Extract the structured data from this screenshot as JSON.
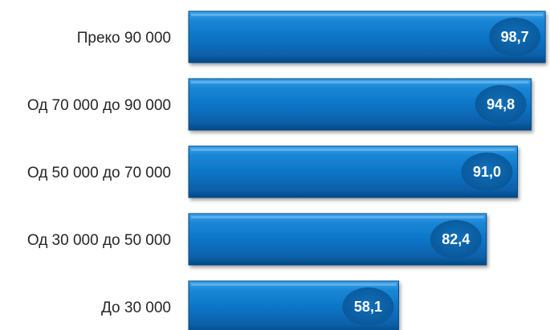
{
  "chart_data": {
    "type": "bar",
    "orientation": "horizontal",
    "categories": [
      "Преко 90 000",
      "Од 70 000 до 90 000",
      "Од 50 000 до 70 000",
      "Од 30 000 до 50 000",
      "До 30 000"
    ],
    "values": [
      98.7,
      94.8,
      91.0,
      82.4,
      58.1
    ],
    "value_labels": [
      "98,7",
      "94,8",
      "91,0",
      "82,4",
      "58,1"
    ],
    "title": "",
    "xlabel": "",
    "ylabel": "",
    "xlim": [
      0,
      100
    ],
    "grid": false,
    "legend": "none",
    "colors": {
      "bar": "#0a72c4",
      "bar_light": "#3fa2e8",
      "bar_dark": "#064a86",
      "bubble": "#0a62a8",
      "label_text": "#262626",
      "value_text": "#ffffff"
    }
  }
}
